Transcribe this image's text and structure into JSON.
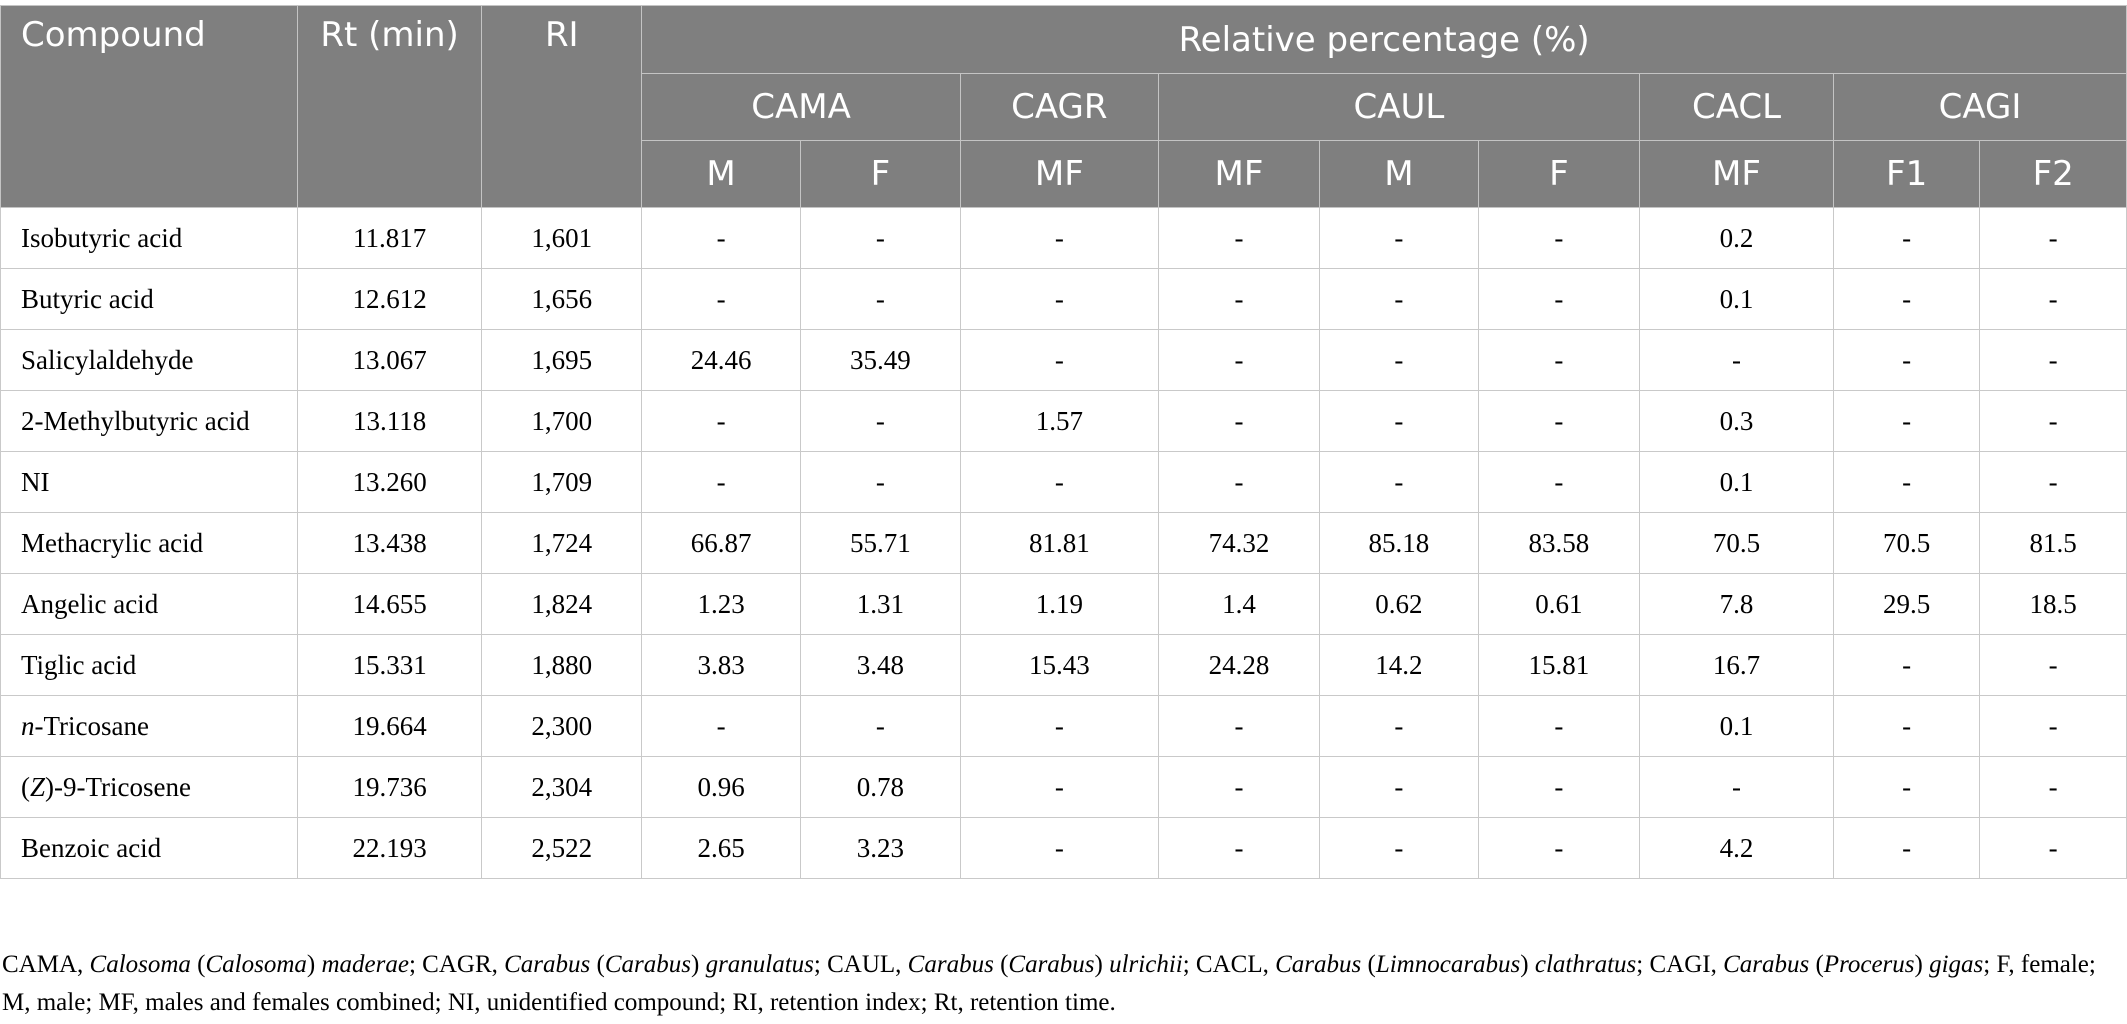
{
  "header": {
    "compound": "Compound",
    "rt": "Rt (min)",
    "ri": "RI",
    "relative": "Relative percentage (%)",
    "groups": [
      "CAMA",
      "CAGR",
      "CAUL",
      "CACL",
      "CAGI"
    ],
    "subcols": [
      "M",
      "F",
      "MF",
      "MF",
      "M",
      "F",
      "MF",
      "F1",
      "F2"
    ]
  },
  "rows": [
    {
      "compound": "Isobutyric acid",
      "rt": "11.817",
      "ri": "1,601",
      "values": [
        "-",
        "-",
        "-",
        "-",
        "-",
        "-",
        "0.2",
        "-",
        "-"
      ]
    },
    {
      "compound": "Butyric acid",
      "rt": "12.612",
      "ri": "1,656",
      "values": [
        "-",
        "-",
        "-",
        "-",
        "-",
        "-",
        "0.1",
        "-",
        "-"
      ]
    },
    {
      "compound": "Salicylaldehyde",
      "rt": "13.067",
      "ri": "1,695",
      "values": [
        "24.46",
        "35.49",
        "-",
        "-",
        "-",
        "-",
        "-",
        "-",
        "-"
      ]
    },
    {
      "compound": "2-Methylbutyric acid",
      "rt": "13.118",
      "ri": "1,700",
      "values": [
        "-",
        "-",
        "1.57",
        "-",
        "-",
        "-",
        "0.3",
        "-",
        "-"
      ]
    },
    {
      "compound": "NI",
      "rt": "13.260",
      "ri": "1,709",
      "values": [
        "-",
        "-",
        "-",
        "-",
        "-",
        "-",
        "0.1",
        "-",
        "-"
      ]
    },
    {
      "compound": "Methacrylic acid",
      "rt": "13.438",
      "ri": "1,724",
      "values": [
        "66.87",
        "55.71",
        "81.81",
        "74.32",
        "85.18",
        "83.58",
        "70.5",
        "70.5",
        "81.5"
      ]
    },
    {
      "compound": "Angelic acid",
      "rt": "14.655",
      "ri": "1,824",
      "values": [
        "1.23",
        "1.31",
        "1.19",
        "1.4",
        "0.62",
        "0.61",
        "7.8",
        "29.5",
        "18.5"
      ]
    },
    {
      "compound": "Tiglic acid",
      "rt": "15.331",
      "ri": "1,880",
      "values": [
        "3.83",
        "3.48",
        "15.43",
        "24.28",
        "14.2",
        "15.81",
        "16.7",
        "-",
        "-"
      ]
    },
    {
      "compound_prefix": "n",
      "compound_rest": "-Tricosane",
      "rt": "19.664",
      "ri": "2,300",
      "values": [
        "-",
        "-",
        "-",
        "-",
        "-",
        "-",
        "0.1",
        "-",
        "-"
      ]
    },
    {
      "compound_open": "(",
      "compound_italic": "Z",
      "compound_rest": ")-9-Tricosene",
      "rt": "19.736",
      "ri": "2,304",
      "values": [
        "0.96",
        "0.78",
        "-",
        "-",
        "-",
        "-",
        "-",
        "-",
        "-"
      ]
    },
    {
      "compound": "Benzoic acid",
      "rt": "22.193",
      "ri": "2,522",
      "values": [
        "2.65",
        "3.23",
        "-",
        "-",
        "-",
        "-",
        "4.2",
        "-",
        "-"
      ]
    }
  ],
  "footnote": {
    "cama_abbr": "CAMA, ",
    "cama_genus": "Calosoma",
    "cama_open": " (",
    "cama_subgenus": "Calosoma",
    "cama_close": ") ",
    "cama_species": "maderae",
    "cagr_abbr": "; CAGR, ",
    "cagr_genus": "Carabus",
    "cagr_open": " (",
    "cagr_subgenus": "Carabus",
    "cagr_close": ") ",
    "cagr_species": "granulatus",
    "caul_abbr": "; CAUL, ",
    "caul_genus": "Carabus",
    "caul_open": " (",
    "caul_subgenus": "Carabus",
    "caul_close": ") ",
    "caul_species": "ulrichii",
    "cacl_abbr": "; CACL, ",
    "cacl_genus": "Carabus",
    "cacl_open": " (",
    "cacl_subgenus": "Limnocarabus",
    "cacl_close": ") ",
    "cacl_species": "clathratus",
    "cagi_abbr": "; CAGI, ",
    "cagi_genus": "Carabus",
    "cagi_open": " (",
    "cagi_subgenus": "Procerus",
    "cagi_close": ") ",
    "cagi_species": "gigas",
    "rest": "; F, female; M, male; MF, males and females combined; NI, unidentified compound; RI, retention index; Rt, retention time."
  }
}
